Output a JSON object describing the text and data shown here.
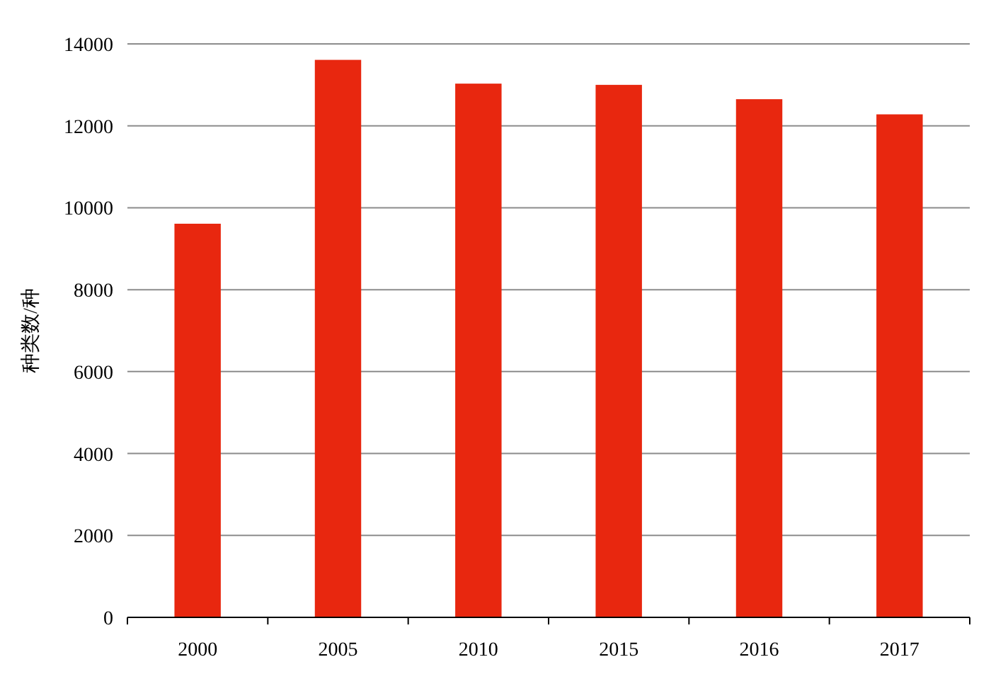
{
  "chart_data": {
    "type": "bar",
    "ylabel": "种类数/种",
    "categories": [
      "2000",
      "2005",
      "2010",
      "2015",
      "2016",
      "2017"
    ],
    "values": [
      9610,
      13610,
      13030,
      13000,
      12650,
      12280
    ],
    "color": "#e8270f",
    "ylim": [
      0,
      14000
    ],
    "yticks": [
      0,
      2000,
      4000,
      6000,
      8000,
      10000,
      12000,
      14000
    ],
    "grid": "y"
  }
}
